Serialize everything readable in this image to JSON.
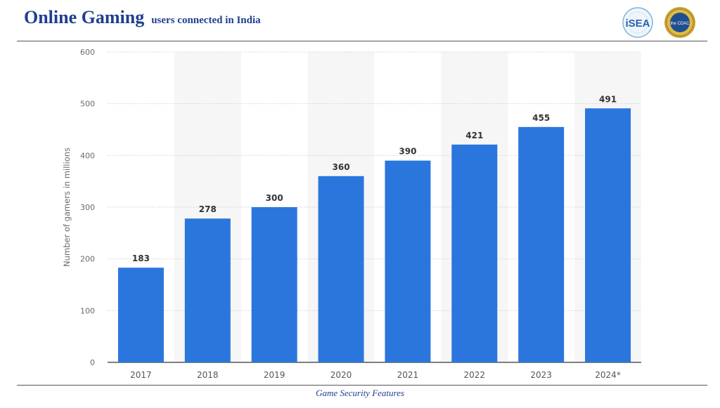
{
  "header": {
    "title": "Online Gaming",
    "subtitle": "users connected in India",
    "logo_isea_text": "iSEA",
    "logo_seal_text": "the CDAC"
  },
  "footer": {
    "text": "Game Security Features"
  },
  "colors": {
    "title": "#1f3f8f",
    "bar": "#2a76dd",
    "band": "#f6f6f6",
    "grid": "#cfcfcf",
    "axis_text": "#6b6b6b",
    "label_text": "#333333"
  },
  "chart_data": {
    "type": "bar",
    "categories": [
      "2017",
      "2018",
      "2019",
      "2020",
      "2021",
      "2022",
      "2023",
      "2024*"
    ],
    "values": [
      183,
      278,
      300,
      360,
      390,
      421,
      455,
      491
    ],
    "title": "",
    "xlabel": "",
    "ylabel": "Number of gamers in millions",
    "ylim": [
      0,
      600
    ],
    "yticks": [
      0,
      100,
      200,
      300,
      400,
      500,
      600
    ],
    "data_labels": true,
    "grid": true
  }
}
